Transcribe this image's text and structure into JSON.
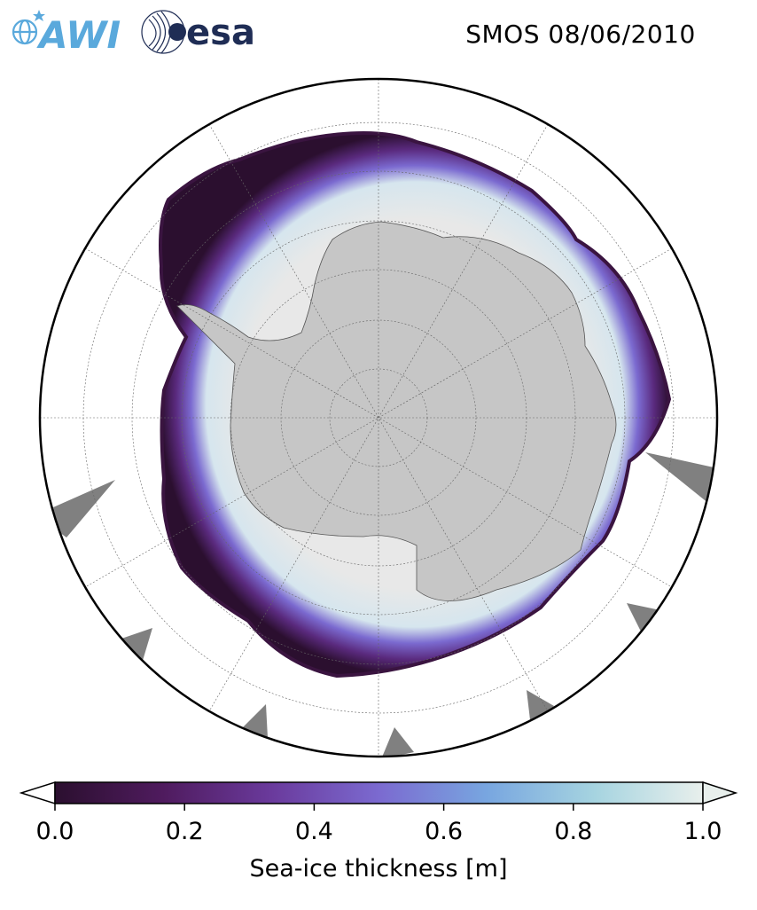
{
  "header": {
    "title": "SMOS 08/06/2010",
    "logos": [
      {
        "name": "AWI",
        "text": "AWI",
        "color": "#5aa9dc"
      },
      {
        "name": "esa",
        "text": "esa",
        "color": "#1f2d55"
      }
    ]
  },
  "map": {
    "projection": "south-polar-stereographic",
    "land_color": "#c6c6c6",
    "missing_data_color": "#808080",
    "ocean_color": "#ffffff",
    "gridlines": "dotted"
  },
  "colorbar": {
    "label": "Sea-ice thickness [m]",
    "min": 0.0,
    "max": 1.0,
    "ticks": [
      "0.0",
      "0.2",
      "0.4",
      "0.6",
      "0.8",
      "1.0"
    ],
    "tick_values": [
      0.0,
      0.2,
      0.4,
      0.6,
      0.8,
      1.0
    ],
    "extend": "both",
    "colormap_stops": [
      "#2b0f2f",
      "#4f1b5e",
      "#6a3a9c",
      "#7b6ad0",
      "#78a6e0",
      "#a6d4e0",
      "#e8efec"
    ]
  }
}
